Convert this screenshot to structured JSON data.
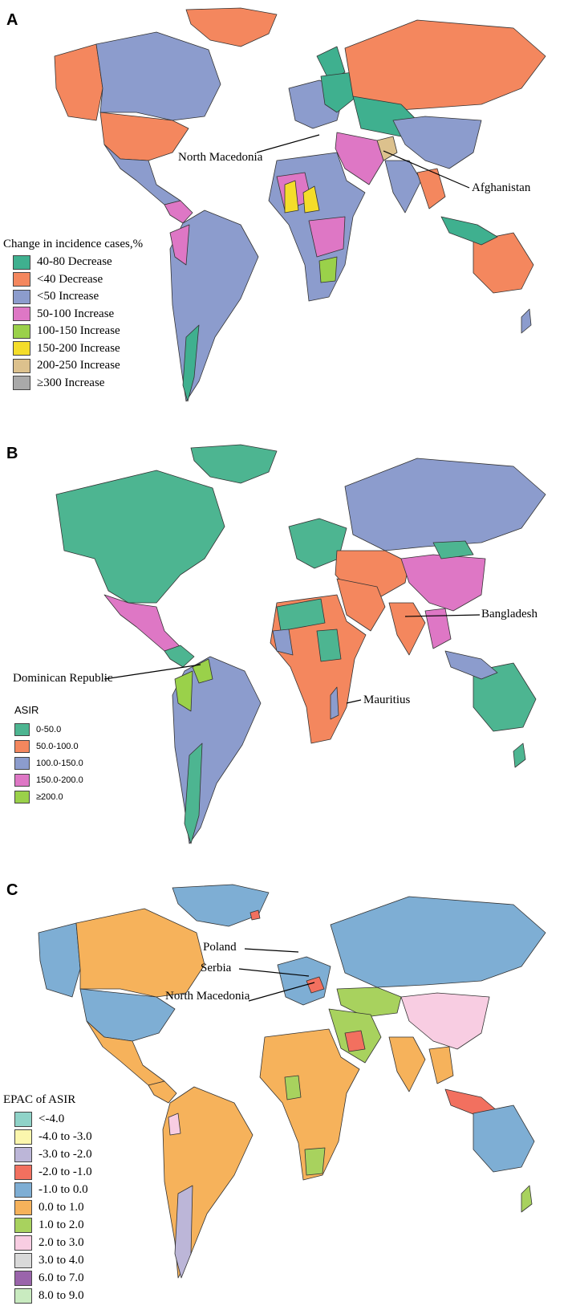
{
  "panels": {
    "a": {
      "letter": "A",
      "annotations": {
        "north_macedonia": "North Macedonia",
        "afghanistan": "Afghanistan"
      },
      "legend": {
        "title": "Change in incidence cases,%",
        "items": [
          {
            "label": "40-80 Decrease",
            "color": "#3fb08f"
          },
          {
            "label": "<40 Decrease",
            "color": "#f4875e"
          },
          {
            "label": "<50 Increase",
            "color": "#8c9ccd"
          },
          {
            "label": "50-100 Increase",
            "color": "#de77c5"
          },
          {
            "label": "100-150 Increase",
            "color": "#9ad14a"
          },
          {
            "label": "150-200 Increase",
            "color": "#f4dd2a"
          },
          {
            "label": "200-250 Increase",
            "color": "#dcc18d"
          },
          {
            "label": "≥300 Increase",
            "color": "#a9a9a9"
          }
        ]
      }
    },
    "b": {
      "letter": "B",
      "annotations": {
        "bangladesh": "Bangladesh",
        "dominican_republic": "Dominican Republic",
        "mauritius": "Mauritius"
      },
      "legend": {
        "title": "ASIR",
        "items": [
          {
            "label": "0-50.0",
            "color": "#4db591"
          },
          {
            "label": "50.0-100.0",
            "color": "#f4875e"
          },
          {
            "label": "100.0-150.0",
            "color": "#8c9ccd"
          },
          {
            "label": "150.0-200.0",
            "color": "#de77c5"
          },
          {
            "label": "≥200.0",
            "color": "#9ad14a"
          }
        ]
      }
    },
    "c": {
      "letter": "C",
      "annotations": {
        "poland": "Poland",
        "serbia": "Serbia",
        "north_macedonia": "North Macedonia"
      },
      "legend": {
        "title": "EPAC of ASIR",
        "items": [
          {
            "label": "<-4.0",
            "color": "#8fd3c8"
          },
          {
            "label": "-4.0 to -3.0",
            "color": "#fbf6ad"
          },
          {
            "label": "-3.0 to -2.0",
            "color": "#bcb6d8"
          },
          {
            "label": "-2.0 to -1.0",
            "color": "#f2705f"
          },
          {
            "label": "-1.0 to 0.0",
            "color": "#7eaed4"
          },
          {
            "label": "0.0 to 1.0",
            "color": "#f6b25b"
          },
          {
            "label": "1.0 to 2.0",
            "color": "#a8d25e"
          },
          {
            "label": "2.0 to 3.0",
            "color": "#f8cde2"
          },
          {
            "label": "3.0 to 4.0",
            "color": "#d9d9d9"
          },
          {
            "label": "6.0 to 7.0",
            "color": "#9a64ab"
          },
          {
            "label": "8.0 to 9.0",
            "color": "#c9ebc0"
          }
        ]
      }
    }
  }
}
